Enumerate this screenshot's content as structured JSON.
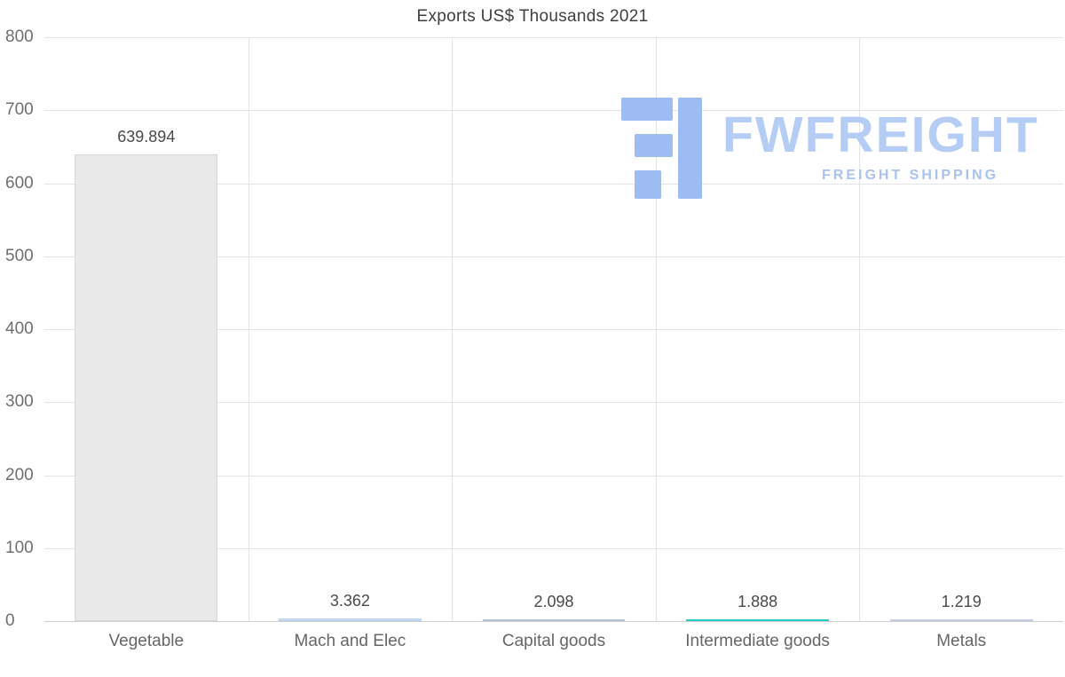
{
  "title": "Exports US$ Thousands 2021",
  "watermark": {
    "brand": "FWFREIGHT",
    "tagline": "FREIGHT SHIPPING",
    "icon": "fwfreight-logo-icon",
    "brand_color": "#b5cdf5",
    "tagline_color": "#a9c2ee",
    "icon_color": "#9dbdf2"
  },
  "chart_data": {
    "type": "bar",
    "title": "Exports US$ Thousands 2021",
    "categories": [
      "Vegetable",
      "Mach and Elec",
      "Capital goods",
      "Intermediate goods",
      "Metals"
    ],
    "values": [
      639.894,
      3.362,
      2.098,
      1.888,
      1.219
    ],
    "value_labels": [
      "639.894",
      "3.362",
      "2.098",
      "1.888",
      "1.219"
    ],
    "bar_colors": [
      "#e9e9e9",
      "#cfdff2",
      "#c9d4e6",
      "#35e0d8",
      "#d6deee"
    ],
    "bar_border_colors": [
      "#d6d6d6",
      "#b9d0ea",
      "#b3c2d8",
      "#21ccc4",
      "#c2cee4"
    ],
    "xlabel": "",
    "ylabel": "",
    "ylim": [
      0,
      800
    ],
    "y_ticks": [
      0,
      100,
      200,
      300,
      400,
      500,
      600,
      700,
      800
    ],
    "grid": true,
    "legend": false
  },
  "colors": {
    "grid": "#e4e4e4",
    "axis": "#cfcfcf",
    "tick_label": "#6f6f6f",
    "category_label": "#666666",
    "value_label": "#4a4a4a",
    "title": "#3f3f3f",
    "background": "#ffffff"
  }
}
